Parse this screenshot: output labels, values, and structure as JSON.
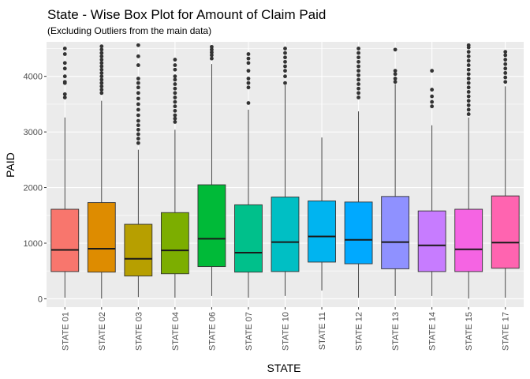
{
  "chart_data": {
    "type": "box",
    "title": "State - Wise Box Plot for Amount of Claim Paid",
    "subtitle": "(Excluding Outliers from the main data)",
    "xlabel": "STATE",
    "ylabel": "PAID",
    "ylim": [
      -150,
      4620
    ],
    "yticks": [
      0,
      1000,
      2000,
      3000,
      4000
    ],
    "grid": true,
    "legend": "none",
    "background": "#ebebeb",
    "boxes": [
      {
        "category": "STATE 01",
        "color": "#F8766D",
        "min": 20,
        "q1": 490,
        "median": 880,
        "q3": 1610,
        "max": 3260,
        "outliers": [
          3620,
          3680,
          3880,
          3900,
          4000,
          4140,
          4240,
          4400,
          4500
        ]
      },
      {
        "category": "STATE 02",
        "color": "#DE8C00",
        "min": 5,
        "q1": 480,
        "median": 900,
        "q3": 1730,
        "max": 3560,
        "outliers": [
          3700,
          3760,
          3820,
          3880,
          3940,
          4000,
          4060,
          4120,
          4180,
          4240,
          4300,
          4360,
          4420,
          4480,
          4540
        ]
      },
      {
        "category": "STATE 03",
        "color": "#B79F00",
        "min": 30,
        "q1": 410,
        "median": 720,
        "q3": 1340,
        "max": 2680,
        "outliers": [
          2800,
          2880,
          2960,
          3040,
          3120,
          3200,
          3300,
          3400,
          3500,
          3600,
          3700,
          3800,
          3880,
          3960,
          4200,
          4360,
          4560
        ]
      },
      {
        "category": "STATE 04",
        "color": "#7CAE00",
        "min": 20,
        "q1": 450,
        "median": 870,
        "q3": 1550,
        "max": 3040,
        "outliers": [
          3180,
          3240,
          3300,
          3380,
          3460,
          3540,
          3620,
          3700,
          3780,
          3860,
          3940,
          4000,
          4120,
          4200,
          4300
        ]
      },
      {
        "category": "STATE 06",
        "color": "#00BA38",
        "min": 50,
        "q1": 580,
        "median": 1080,
        "q3": 2050,
        "max": 4220,
        "outliers": [
          4320,
          4380,
          4430,
          4480,
          4530
        ]
      },
      {
        "category": "STATE 07",
        "color": "#00C08B",
        "min": 20,
        "q1": 480,
        "median": 830,
        "q3": 1690,
        "max": 3400,
        "outliers": [
          3520,
          3800,
          3880,
          3960,
          4100,
          4240,
          4320,
          4400
        ]
      },
      {
        "category": "STATE 10",
        "color": "#00BFC4",
        "min": 50,
        "q1": 490,
        "median": 1020,
        "q3": 1830,
        "max": 3840,
        "outliers": [
          3880,
          4000,
          4100,
          4180,
          4260,
          4340,
          4420,
          4500
        ]
      },
      {
        "category": "STATE 11",
        "color": "#00B4F0",
        "min": 150,
        "q1": 660,
        "median": 1120,
        "q3": 1760,
        "max": 2900,
        "outliers": []
      },
      {
        "category": "STATE 12",
        "color": "#00A9FF",
        "min": 20,
        "q1": 630,
        "median": 1060,
        "q3": 1740,
        "max": 3370,
        "outliers": [
          3620,
          3700,
          3780,
          3860,
          3940,
          4020,
          4100,
          4180,
          4260,
          4340,
          4420,
          4500
        ]
      },
      {
        "category": "STATE 13",
        "color": "#8F91FF",
        "min": 50,
        "q1": 540,
        "median": 1020,
        "q3": 1840,
        "max": 3860,
        "outliers": [
          3900,
          3960,
          4040,
          4100,
          4480
        ]
      },
      {
        "category": "STATE 14",
        "color": "#C77CFF",
        "min": 50,
        "q1": 490,
        "median": 960,
        "q3": 1580,
        "max": 3120,
        "outliers": [
          3460,
          3540,
          3640,
          3760,
          4100
        ]
      },
      {
        "category": "STATE 15",
        "color": "#F564E3",
        "min": 5,
        "q1": 490,
        "median": 890,
        "q3": 1610,
        "max": 3260,
        "outliers": [
          3320,
          3400,
          3480,
          3560,
          3640,
          3720,
          3800,
          3880,
          3960,
          4040,
          4120,
          4200,
          4280,
          4360,
          4440,
          4520,
          4560
        ]
      },
      {
        "category": "STATE 17",
        "color": "#FF64B0",
        "min": 20,
        "q1": 550,
        "median": 1010,
        "q3": 1850,
        "max": 3820,
        "outliers": [
          3900,
          3980,
          4060,
          4140,
          4220,
          4300,
          4380,
          4440
        ]
      }
    ]
  }
}
